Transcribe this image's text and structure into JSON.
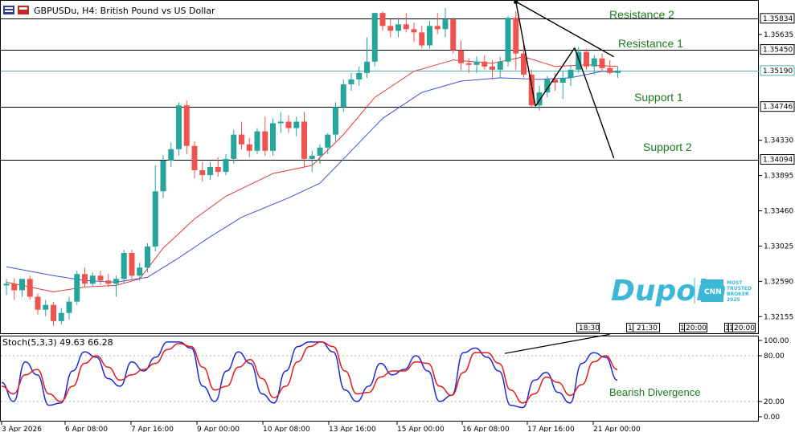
{
  "header": {
    "title": "GBPUSDu, H4:  British Pound vs US Dollar",
    "stoch_label": "Stoch(5,3,3) 49.63 66.28"
  },
  "colors": {
    "bull": "#26a69a",
    "bear": "#ef5350",
    "ema_fast": "#e53935",
    "ema_slow": "#3f51d8",
    "stoch_k": "#1e2bd6",
    "stoch_d": "#e31b1b",
    "level_text": "#1e7a1e",
    "current_price_line": "#4fb3b0"
  },
  "levels": [
    {
      "name": "Resistance 2",
      "price": 1.35834,
      "tag": "1.35834"
    },
    {
      "name": "Resistance 1",
      "price": 1.3545,
      "tag": "1.35450"
    },
    {
      "name": "Support 1",
      "price": 1.34746,
      "tag": "1.34746"
    },
    {
      "name": "Support 2",
      "price": 1.34094,
      "tag": "1.34094"
    }
  ],
  "current_price": {
    "price": 1.3519,
    "tag": "1.35190"
  },
  "price_axis_ticks": [
    "1.35635",
    "1.34330",
    "1.33895",
    "1.33460",
    "1.33025",
    "1.32590",
    "1.32155"
  ],
  "stoch_axis_ticks": [
    "100.00",
    "80.00",
    "20.00",
    "0.00"
  ],
  "time_axis_ticks": [
    "3 Apr 2026",
    "6 Apr 08:00",
    "7 Apr 16:00",
    "9 Apr 00:00",
    "10 Apr 08:00",
    "13 Apr 16:00",
    "15 Apr 00:00",
    "16 Apr 08:00",
    "17 Apr 16:00",
    "21 Apr 00:00"
  ],
  "time_markers": [
    "18:30",
    "17",
    "21:30",
    "1",
    "20:00",
    "1",
    "1",
    "20:00"
  ],
  "annotations": {
    "divergence": "Bearish Divergence"
  },
  "logo": {
    "word": "Dupoin",
    "badge_line1": "MOST",
    "badge_line2": "TRUSTED",
    "badge_line3": "BROKER",
    "badge_line4": "2025"
  },
  "chart_data": [
    {
      "type": "candlestick",
      "title": "GBPUSDu, H4:  British Pound vs US Dollar",
      "ylim": [
        1.3195,
        1.3605
      ],
      "candles": [
        {
          "o": 1.3254,
          "h": 1.3262,
          "l": 1.3242,
          "c": 1.3256
        },
        {
          "o": 1.3256,
          "h": 1.3263,
          "l": 1.3236,
          "c": 1.3248
        },
        {
          "o": 1.3248,
          "h": 1.3262,
          "l": 1.324,
          "c": 1.3262
        },
        {
          "o": 1.3262,
          "h": 1.3266,
          "l": 1.3236,
          "c": 1.324
        },
        {
          "o": 1.324,
          "h": 1.3244,
          "l": 1.3218,
          "c": 1.3224
        },
        {
          "o": 1.3224,
          "h": 1.3236,
          "l": 1.3216,
          "c": 1.323
        },
        {
          "o": 1.323,
          "h": 1.3234,
          "l": 1.3204,
          "c": 1.321
        },
        {
          "o": 1.321,
          "h": 1.3226,
          "l": 1.3206,
          "c": 1.322
        },
        {
          "o": 1.322,
          "h": 1.324,
          "l": 1.3212,
          "c": 1.3234
        },
        {
          "o": 1.3234,
          "h": 1.3272,
          "l": 1.323,
          "c": 1.3268
        },
        {
          "o": 1.3268,
          "h": 1.3276,
          "l": 1.3252,
          "c": 1.3256
        },
        {
          "o": 1.3256,
          "h": 1.327,
          "l": 1.3252,
          "c": 1.3266
        },
        {
          "o": 1.3266,
          "h": 1.3272,
          "l": 1.3255,
          "c": 1.326
        },
        {
          "o": 1.326,
          "h": 1.3268,
          "l": 1.3252,
          "c": 1.3256
        },
        {
          "o": 1.3256,
          "h": 1.3266,
          "l": 1.324,
          "c": 1.3262
        },
        {
          "o": 1.3262,
          "h": 1.3298,
          "l": 1.3256,
          "c": 1.3294
        },
        {
          "o": 1.3294,
          "h": 1.3298,
          "l": 1.3262,
          "c": 1.3266
        },
        {
          "o": 1.3266,
          "h": 1.3282,
          "l": 1.326,
          "c": 1.3276
        },
        {
          "o": 1.3276,
          "h": 1.3306,
          "l": 1.327,
          "c": 1.3302
        },
        {
          "o": 1.3302,
          "h": 1.3402,
          "l": 1.3296,
          "c": 1.337
        },
        {
          "o": 1.337,
          "h": 1.3415,
          "l": 1.3362,
          "c": 1.3408
        },
        {
          "o": 1.3408,
          "h": 1.343,
          "l": 1.34,
          "c": 1.3422
        },
        {
          "o": 1.3422,
          "h": 1.348,
          "l": 1.3414,
          "c": 1.3476
        },
        {
          "o": 1.3476,
          "h": 1.3482,
          "l": 1.3416,
          "c": 1.3426
        },
        {
          "o": 1.3426,
          "h": 1.3432,
          "l": 1.3386,
          "c": 1.3396
        },
        {
          "o": 1.3396,
          "h": 1.3406,
          "l": 1.3382,
          "c": 1.339
        },
        {
          "o": 1.339,
          "h": 1.3406,
          "l": 1.3384,
          "c": 1.34
        },
        {
          "o": 1.34,
          "h": 1.3412,
          "l": 1.3388,
          "c": 1.3394
        },
        {
          "o": 1.3394,
          "h": 1.3416,
          "l": 1.339,
          "c": 1.341
        },
        {
          "o": 1.341,
          "h": 1.3446,
          "l": 1.3404,
          "c": 1.344
        },
        {
          "o": 1.344,
          "h": 1.3456,
          "l": 1.3422,
          "c": 1.3428
        },
        {
          "o": 1.3428,
          "h": 1.3436,
          "l": 1.3412,
          "c": 1.342
        },
        {
          "o": 1.342,
          "h": 1.3448,
          "l": 1.3416,
          "c": 1.3444
        },
        {
          "o": 1.3444,
          "h": 1.3462,
          "l": 1.3414,
          "c": 1.342
        },
        {
          "o": 1.342,
          "h": 1.346,
          "l": 1.3414,
          "c": 1.3454
        },
        {
          "o": 1.3454,
          "h": 1.3468,
          "l": 1.3442,
          "c": 1.3456
        },
        {
          "o": 1.3456,
          "h": 1.3464,
          "l": 1.3442,
          "c": 1.3448
        },
        {
          "o": 1.3448,
          "h": 1.3462,
          "l": 1.3438,
          "c": 1.3456
        },
        {
          "o": 1.3456,
          "h": 1.3468,
          "l": 1.34,
          "c": 1.341
        },
        {
          "o": 1.341,
          "h": 1.342,
          "l": 1.3394,
          "c": 1.3414
        },
        {
          "o": 1.3414,
          "h": 1.3428,
          "l": 1.3404,
          "c": 1.3424
        },
        {
          "o": 1.3424,
          "h": 1.3442,
          "l": 1.3416,
          "c": 1.344
        },
        {
          "o": 1.344,
          "h": 1.348,
          "l": 1.3432,
          "c": 1.3474
        },
        {
          "o": 1.3474,
          "h": 1.3508,
          "l": 1.3468,
          "c": 1.3502
        },
        {
          "o": 1.3502,
          "h": 1.3516,
          "l": 1.3494,
          "c": 1.3508
        },
        {
          "o": 1.3508,
          "h": 1.3524,
          "l": 1.35,
          "c": 1.3516
        },
        {
          "o": 1.3516,
          "h": 1.356,
          "l": 1.351,
          "c": 1.353
        },
        {
          "o": 1.353,
          "h": 1.359,
          "l": 1.3524,
          "c": 1.359
        },
        {
          "o": 1.359,
          "h": 1.3592,
          "l": 1.3568,
          "c": 1.3574
        },
        {
          "o": 1.3574,
          "h": 1.3582,
          "l": 1.356,
          "c": 1.3568
        },
        {
          "o": 1.3568,
          "h": 1.3584,
          "l": 1.356,
          "c": 1.3576
        },
        {
          "o": 1.3576,
          "h": 1.359,
          "l": 1.3566,
          "c": 1.357
        },
        {
          "o": 1.357,
          "h": 1.3578,
          "l": 1.3554,
          "c": 1.3566
        },
        {
          "o": 1.3566,
          "h": 1.3574,
          "l": 1.3546,
          "c": 1.355
        },
        {
          "o": 1.355,
          "h": 1.358,
          "l": 1.3546,
          "c": 1.3574
        },
        {
          "o": 1.3574,
          "h": 1.359,
          "l": 1.3564,
          "c": 1.357
        },
        {
          "o": 1.357,
          "h": 1.3596,
          "l": 1.356,
          "c": 1.3582
        },
        {
          "o": 1.3582,
          "h": 1.3584,
          "l": 1.354,
          "c": 1.3544
        },
        {
          "o": 1.3544,
          "h": 1.3556,
          "l": 1.352,
          "c": 1.3528
        },
        {
          "o": 1.3528,
          "h": 1.3534,
          "l": 1.3516,
          "c": 1.3526
        },
        {
          "o": 1.3526,
          "h": 1.3536,
          "l": 1.3516,
          "c": 1.353
        },
        {
          "o": 1.353,
          "h": 1.3538,
          "l": 1.352,
          "c": 1.3524
        },
        {
          "o": 1.3524,
          "h": 1.3532,
          "l": 1.3508,
          "c": 1.352
        },
        {
          "o": 1.352,
          "h": 1.3536,
          "l": 1.351,
          "c": 1.353
        },
        {
          "o": 1.353,
          "h": 1.3586,
          "l": 1.3524,
          "c": 1.3584
        },
        {
          "o": 1.3584,
          "h": 1.3592,
          "l": 1.352,
          "c": 1.354
        },
        {
          "o": 1.354,
          "h": 1.3552,
          "l": 1.351,
          "c": 1.3514
        },
        {
          "o": 1.3514,
          "h": 1.352,
          "l": 1.3474,
          "c": 1.3476
        },
        {
          "o": 1.3476,
          "h": 1.35,
          "l": 1.347,
          "c": 1.3492
        },
        {
          "o": 1.3492,
          "h": 1.3512,
          "l": 1.3486,
          "c": 1.3508
        },
        {
          "o": 1.3508,
          "h": 1.3516,
          "l": 1.3494,
          "c": 1.3504
        },
        {
          "o": 1.3504,
          "h": 1.3518,
          "l": 1.3484,
          "c": 1.351
        },
        {
          "o": 1.351,
          "h": 1.3526,
          "l": 1.35,
          "c": 1.352
        },
        {
          "o": 1.352,
          "h": 1.3548,
          "l": 1.3516,
          "c": 1.3542
        },
        {
          "o": 1.3542,
          "h": 1.3546,
          "l": 1.352,
          "c": 1.3524
        },
        {
          "o": 1.3524,
          "h": 1.3538,
          "l": 1.3514,
          "c": 1.3534
        },
        {
          "o": 1.3534,
          "h": 1.354,
          "l": 1.3518,
          "c": 1.3522
        },
        {
          "o": 1.3522,
          "h": 1.3532,
          "l": 1.3514,
          "c": 1.3516
        },
        {
          "o": 1.3516,
          "h": 1.3524,
          "l": 1.351,
          "c": 1.3519
        }
      ],
      "ema_fast": [
        {
          "i": 0,
          "v": 1.3258
        },
        {
          "i": 6,
          "v": 1.3246
        },
        {
          "i": 10,
          "v": 1.3252
        },
        {
          "i": 14,
          "v": 1.3254
        },
        {
          "i": 17,
          "v": 1.3262
        },
        {
          "i": 20,
          "v": 1.33
        },
        {
          "i": 24,
          "v": 1.3336
        },
        {
          "i": 28,
          "v": 1.3364
        },
        {
          "i": 34,
          "v": 1.3392
        },
        {
          "i": 39,
          "v": 1.3402
        },
        {
          "i": 43,
          "v": 1.344
        },
        {
          "i": 47,
          "v": 1.3486
        },
        {
          "i": 52,
          "v": 1.3518
        },
        {
          "i": 57,
          "v": 1.3532
        },
        {
          "i": 62,
          "v": 1.3528
        },
        {
          "i": 66,
          "v": 1.3536
        },
        {
          "i": 70,
          "v": 1.3524
        },
        {
          "i": 74,
          "v": 1.3526
        },
        {
          "i": 78,
          "v": 1.3524
        }
      ],
      "ema_slow": [
        {
          "i": 0,
          "v": 1.3277
        },
        {
          "i": 6,
          "v": 1.3266
        },
        {
          "i": 10,
          "v": 1.326
        },
        {
          "i": 14,
          "v": 1.3258
        },
        {
          "i": 18,
          "v": 1.3264
        },
        {
          "i": 22,
          "v": 1.3288
        },
        {
          "i": 26,
          "v": 1.3314
        },
        {
          "i": 30,
          "v": 1.3338
        },
        {
          "i": 36,
          "v": 1.3362
        },
        {
          "i": 40,
          "v": 1.338
        },
        {
          "i": 44,
          "v": 1.342
        },
        {
          "i": 48,
          "v": 1.346
        },
        {
          "i": 53,
          "v": 1.3492
        },
        {
          "i": 58,
          "v": 1.3506
        },
        {
          "i": 63,
          "v": 1.351
        },
        {
          "i": 68,
          "v": 1.3508
        },
        {
          "i": 72,
          "v": 1.351
        },
        {
          "i": 76,
          "v": 1.3518
        },
        {
          "i": 78,
          "v": 1.3517
        }
      ],
      "trendlines": [
        {
          "from": {
            "i": 65,
            "v": 1.3604
          },
          "to": {
            "i": 77.5,
            "v": 1.3536
          }
        },
        {
          "from": {
            "i": 65,
            "v": 1.3604
          },
          "to": {
            "i": 67.5,
            "v": 1.3475
          }
        },
        {
          "from": {
            "i": 67.5,
            "v": 1.3475
          },
          "to": {
            "i": 72.5,
            "v": 1.3547
          }
        },
        {
          "from": {
            "i": 72.5,
            "v": 1.3547
          },
          "to": {
            "i": 77.5,
            "v": 1.3411
          }
        }
      ]
    },
    {
      "type": "line",
      "title": "Stoch(5,3,3) 49.63 66.28",
      "ylim": [
        0,
        100
      ],
      "series": [
        {
          "name": "K",
          "values": [
            45,
            20,
            72,
            55,
            15,
            18,
            60,
            85,
            78,
            50,
            40,
            72,
            60,
            78,
            98,
            98,
            90,
            40,
            20,
            60,
            85,
            70,
            30,
            18,
            60,
            92,
            98,
            98,
            85,
            35,
            20,
            40,
            70,
            55,
            62,
            80,
            60,
            20,
            28,
            84,
            90,
            78,
            60,
            15,
            12,
            48,
            58,
            32,
            18,
            70,
            84,
            78,
            48
          ]
        },
        {
          "name": "D",
          "values": [
            40,
            30,
            55,
            62,
            30,
            20,
            40,
            70,
            80,
            65,
            48,
            55,
            62,
            70,
            88,
            96,
            92,
            65,
            35,
            40,
            65,
            75,
            50,
            25,
            40,
            72,
            92,
            98,
            92,
            60,
            30,
            32,
            52,
            60,
            60,
            72,
            70,
            40,
            28,
            58,
            84,
            84,
            70,
            35,
            18,
            30,
            52,
            45,
            28,
            42,
            72,
            80,
            62
          ]
        }
      ],
      "divergence_line": {
        "from": {
          "x": 0.785,
          "v": 83
        },
        "to": {
          "x": 0.985,
          "v": 108
        }
      }
    }
  ]
}
